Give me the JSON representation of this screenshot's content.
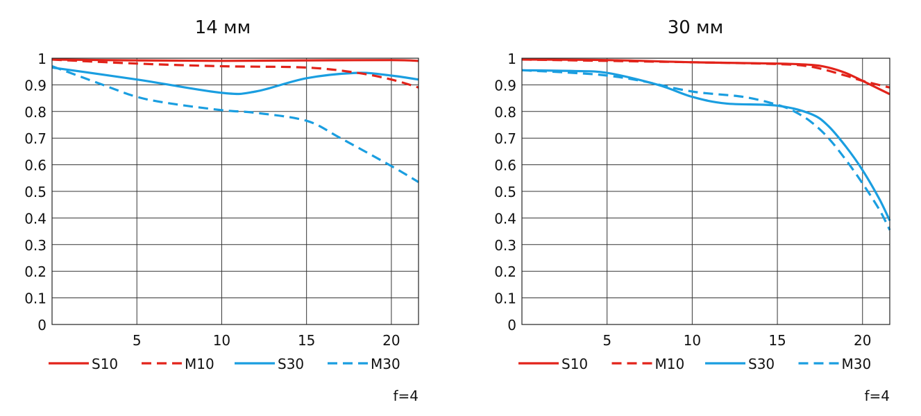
{
  "chart_data": [
    {
      "type": "line",
      "title": "14 мм",
      "xlim": [
        0,
        21.6
      ],
      "ylim": [
        0,
        1
      ],
      "grid": true,
      "x_ticks": [
        5,
        10,
        15,
        20
      ],
      "x_tick_labels": [
        "5",
        "10",
        "15",
        "20"
      ],
      "y_ticks": [
        0,
        0.1,
        0.2,
        0.3,
        0.4,
        0.5,
        0.6,
        0.7,
        0.8,
        0.9,
        1
      ],
      "y_tick_labels": [
        "0",
        "0.1",
        "0.2",
        "0.3",
        "0.4",
        "0.5",
        "0.6",
        "0.7",
        "0.8",
        "0.9",
        "1"
      ],
      "note": "f=4",
      "legend_position": "bottom",
      "series": [
        {
          "name": "S10",
          "color": "#e2231a",
          "dash": "solid",
          "x": [
            0,
            5,
            10,
            15,
            20,
            21.6
          ],
          "y": [
            0.995,
            0.992,
            0.99,
            0.992,
            0.993,
            0.99
          ]
        },
        {
          "name": "M10",
          "color": "#e2231a",
          "dash": "dashed",
          "x": [
            0,
            5,
            10,
            15,
            18,
            20,
            21.6
          ],
          "y": [
            0.995,
            0.98,
            0.97,
            0.965,
            0.945,
            0.92,
            0.89
          ]
        },
        {
          "name": "S30",
          "color": "#1a9ee0",
          "dash": "solid",
          "x": [
            0,
            5,
            10,
            12,
            15,
            18,
            20,
            21.6
          ],
          "y": [
            0.965,
            0.92,
            0.87,
            0.875,
            0.925,
            0.945,
            0.935,
            0.92
          ]
        },
        {
          "name": "M30",
          "color": "#1a9ee0",
          "dash": "dashed",
          "x": [
            0,
            3,
            5,
            7,
            10,
            12,
            15,
            17,
            20,
            21.6
          ],
          "y": [
            0.97,
            0.9,
            0.855,
            0.83,
            0.805,
            0.795,
            0.765,
            0.7,
            0.595,
            0.535
          ]
        }
      ]
    },
    {
      "type": "line",
      "title": "30 мм",
      "xlim": [
        0,
        21.6
      ],
      "ylim": [
        0,
        1
      ],
      "grid": true,
      "x_ticks": [
        5,
        10,
        15,
        20
      ],
      "x_tick_labels": [
        "5",
        "10",
        "15",
        "20"
      ],
      "y_ticks": [
        0,
        0.1,
        0.2,
        0.3,
        0.4,
        0.5,
        0.6,
        0.7,
        0.8,
        0.9,
        1
      ],
      "y_tick_labels": [
        "0",
        "0.1",
        "0.2",
        "0.3",
        "0.4",
        "0.5",
        "0.6",
        "0.7",
        "0.8",
        "0.9",
        "1"
      ],
      "note": "f=4",
      "legend_position": "bottom",
      "series": [
        {
          "name": "S10",
          "color": "#e2231a",
          "dash": "solid",
          "x": [
            0,
            5,
            10,
            15,
            17,
            18,
            19,
            20,
            21.6
          ],
          "y": [
            0.995,
            0.993,
            0.985,
            0.98,
            0.975,
            0.965,
            0.945,
            0.915,
            0.865
          ]
        },
        {
          "name": "M10",
          "color": "#e2231a",
          "dash": "dashed",
          "x": [
            0,
            5,
            10,
            15,
            17,
            19,
            20,
            21.6
          ],
          "y": [
            0.995,
            0.99,
            0.985,
            0.978,
            0.968,
            0.935,
            0.915,
            0.89
          ]
        },
        {
          "name": "S30",
          "color": "#1a9ee0",
          "dash": "solid",
          "x": [
            0,
            3,
            5,
            8,
            10,
            12,
            15,
            17,
            18,
            19,
            20,
            21,
            21.6
          ],
          "y": [
            0.955,
            0.952,
            0.945,
            0.9,
            0.855,
            0.83,
            0.822,
            0.79,
            0.745,
            0.67,
            0.58,
            0.47,
            0.39
          ]
        },
        {
          "name": "M30",
          "color": "#1a9ee0",
          "dash": "dashed",
          "x": [
            0,
            3,
            5,
            7,
            10,
            13,
            15,
            16,
            17,
            18,
            19,
            20,
            21,
            21.6
          ],
          "y": [
            0.955,
            0.945,
            0.935,
            0.915,
            0.875,
            0.855,
            0.825,
            0.8,
            0.76,
            0.7,
            0.62,
            0.53,
            0.43,
            0.355
          ]
        }
      ]
    }
  ]
}
